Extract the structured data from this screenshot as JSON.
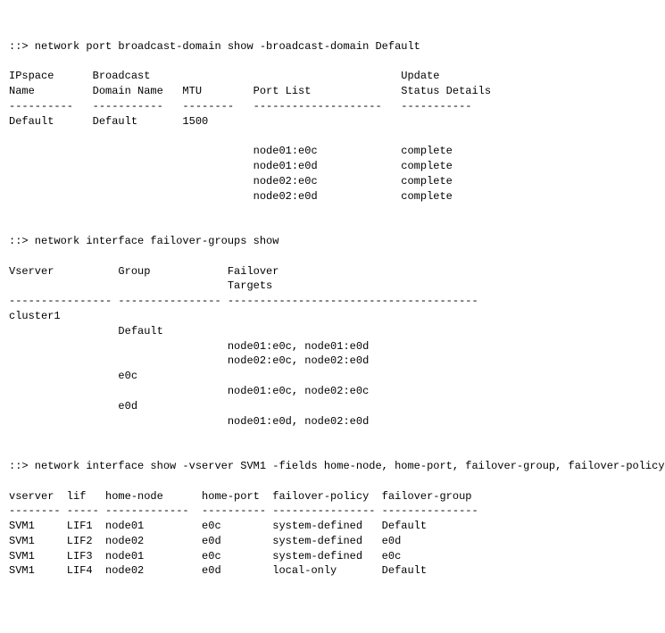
{
  "cmd1": {
    "prompt": "::> network port broadcast-domain show -broadcast-domain Default",
    "hdr1": {
      "c1": "IPspace",
      "c2": "Broadcast",
      "c5": "Update"
    },
    "hdr2": {
      "c1": "Name",
      "c2": "Domain Name",
      "c3": "MTU",
      "c4": "Port List",
      "c5": "Status Details"
    },
    "sep": {
      "c1": "----------",
      "c2": "-----------",
      "c3": "--------",
      "c4": "--------------------",
      "c5": "-----------"
    },
    "row1": {
      "c1": "Default",
      "c2": "Default",
      "c3": "1500"
    },
    "ports": [
      {
        "port": "node01:e0c",
        "status": "complete"
      },
      {
        "port": "node01:e0d",
        "status": "complete"
      },
      {
        "port": "node02:e0c",
        "status": "complete"
      },
      {
        "port": "node02:e0d",
        "status": "complete"
      }
    ]
  },
  "cmd2": {
    "prompt": "::> network interface failover-groups show",
    "hdr1": {
      "c1": "Vserver",
      "c2": "Group",
      "c3": "Failover"
    },
    "hdr2": {
      "c3": "Targets"
    },
    "sep": {
      "c1": "----------------",
      "c2": "----------------",
      "c3": "---------------------------------------"
    },
    "vserver": "cluster1",
    "groups": [
      {
        "name": "Default",
        "targets": [
          "node01:e0c, node01:e0d",
          "node02:e0c, node02:e0d"
        ]
      },
      {
        "name": "e0c",
        "targets": [
          "node01:e0c, node02:e0c"
        ]
      },
      {
        "name": "e0d",
        "targets": [
          "node01:e0d, node02:e0d"
        ]
      }
    ]
  },
  "cmd3": {
    "prompt": "::> network interface show -vserver SVM1 -fields home-node, home-port, failover-group, failover-policy",
    "hdr": {
      "c1": "vserver",
      "c2": "lif",
      "c3": "home-node",
      "c4": "home-port",
      "c5": "failover-policy",
      "c6": "failover-group"
    },
    "sep": {
      "c1": "--------",
      "c2": "-----",
      "c3": "-------------",
      "c4": "----------",
      "c5": "----------------",
      "c6": "---------------"
    },
    "rows": [
      {
        "c1": "SVM1",
        "c2": "LIF1",
        "c3": "node01",
        "c4": "e0c",
        "c5": "system-defined",
        "c6": "Default"
      },
      {
        "c1": "SVM1",
        "c2": "LIF2",
        "c3": "node02",
        "c4": "e0d",
        "c5": "system-defined",
        "c6": "e0d"
      },
      {
        "c1": "SVM1",
        "c2": "LIF3",
        "c3": "node01",
        "c4": "e0c",
        "c5": "system-defined",
        "c6": "e0c"
      },
      {
        "c1": "SVM1",
        "c2": "LIF4",
        "c3": "node02",
        "c4": "e0d",
        "c5": "local-only",
        "c6": "Default"
      }
    ]
  }
}
